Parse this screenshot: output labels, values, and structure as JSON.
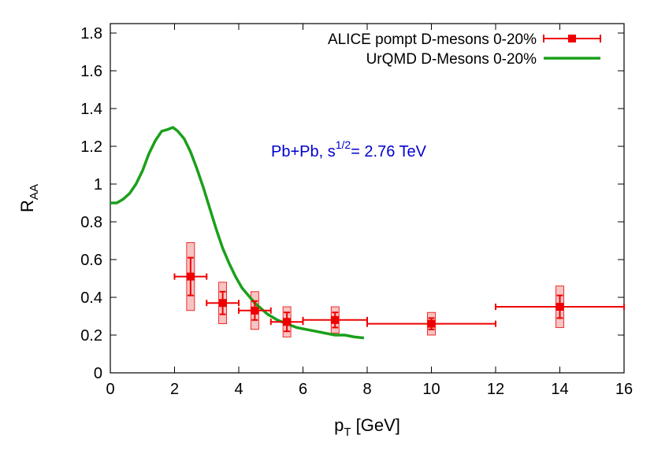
{
  "chart_data": {
    "type": "scatter",
    "xlabel": "p",
    "xlabel_sub": "T",
    "xlabel_unit": " [GeV]",
    "ylabel": "R",
    "ylabel_sub": "AA",
    "xlim": [
      0,
      16
    ],
    "ylim": [
      0,
      1.85
    ],
    "xticks": [
      0,
      2,
      4,
      6,
      8,
      10,
      12,
      14,
      16
    ],
    "yticks": [
      0,
      0.2,
      0.4,
      0.6,
      0.8,
      1,
      1.2,
      1.4,
      1.6,
      1.8
    ],
    "xtick_labels": [
      "0",
      "2",
      "4",
      "6",
      "8",
      "10",
      "12",
      "14",
      "16"
    ],
    "ytick_labels": [
      "0",
      "0.2",
      "0.4",
      "0.6",
      "0.8",
      "1",
      "1.2",
      "1.4",
      "1.6",
      "1.8"
    ],
    "grid": false,
    "legend_position": "top-right",
    "annotation": {
      "prefix": "Pb+Pb, s",
      "superscript": "1/2",
      "suffix": "= 2.76 TeV",
      "color": "#0000cc"
    },
    "series": [
      {
        "name": "ALICE pompt D-mesons 0-20%",
        "kind": "points",
        "color": "#ee0000",
        "box_fill": "#f6b8b8",
        "points": [
          {
            "x": 2.5,
            "y": 0.51,
            "xerr": 0.5,
            "yerr": 0.1,
            "sys": 0.18
          },
          {
            "x": 3.5,
            "y": 0.37,
            "xerr": 0.5,
            "yerr": 0.06,
            "sys": 0.11
          },
          {
            "x": 4.5,
            "y": 0.33,
            "xerr": 0.5,
            "yerr": 0.05,
            "sys": 0.1
          },
          {
            "x": 5.5,
            "y": 0.27,
            "xerr": 0.5,
            "yerr": 0.05,
            "sys": 0.08
          },
          {
            "x": 7.0,
            "y": 0.28,
            "xerr": 1.0,
            "yerr": 0.04,
            "sys": 0.07
          },
          {
            "x": 10.0,
            "y": 0.26,
            "xerr": 2.0,
            "yerr": 0.03,
            "sys": 0.06
          },
          {
            "x": 14.0,
            "y": 0.35,
            "xerr": 2.0,
            "yerr": 0.06,
            "sys": 0.11
          }
        ]
      },
      {
        "name": "UrQMD D-Mesons 0-20%",
        "kind": "line",
        "color": "#1aa01a",
        "points": [
          [
            0.0,
            0.9
          ],
          [
            0.2,
            0.9
          ],
          [
            0.4,
            0.92
          ],
          [
            0.6,
            0.95
          ],
          [
            0.8,
            1.0
          ],
          [
            1.0,
            1.07
          ],
          [
            1.2,
            1.16
          ],
          [
            1.4,
            1.23
          ],
          [
            1.6,
            1.28
          ],
          [
            1.8,
            1.29
          ],
          [
            1.95,
            1.3
          ],
          [
            2.1,
            1.28
          ],
          [
            2.3,
            1.24
          ],
          [
            2.5,
            1.17
          ],
          [
            2.7,
            1.08
          ],
          [
            2.9,
            0.98
          ],
          [
            3.1,
            0.87
          ],
          [
            3.3,
            0.76
          ],
          [
            3.5,
            0.66
          ],
          [
            3.7,
            0.58
          ],
          [
            3.9,
            0.51
          ],
          [
            4.1,
            0.45
          ],
          [
            4.3,
            0.41
          ],
          [
            4.5,
            0.37
          ],
          [
            4.7,
            0.34
          ],
          [
            4.9,
            0.31
          ],
          [
            5.2,
            0.28
          ],
          [
            5.5,
            0.26
          ],
          [
            5.8,
            0.24
          ],
          [
            6.1,
            0.23
          ],
          [
            6.4,
            0.22
          ],
          [
            6.7,
            0.21
          ],
          [
            7.0,
            0.2
          ],
          [
            7.3,
            0.2
          ],
          [
            7.6,
            0.19
          ],
          [
            7.9,
            0.185
          ]
        ]
      }
    ]
  }
}
